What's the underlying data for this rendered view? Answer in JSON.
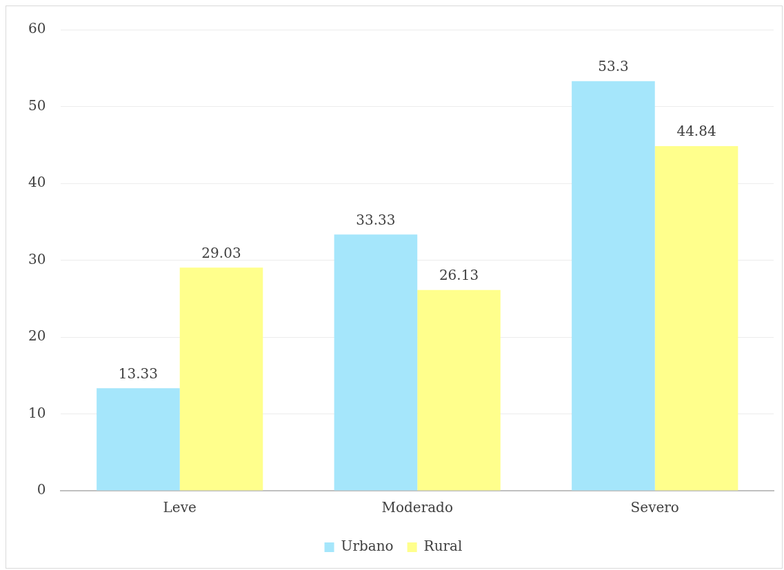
{
  "chart_data": {
    "type": "bar",
    "categories": [
      "Leve",
      "Moderado",
      "Severo"
    ],
    "series": [
      {
        "name": "Urbano",
        "color": "#a5e6fb",
        "values": [
          13.33,
          33.33,
          53.3
        ]
      },
      {
        "name": "Rural",
        "color": "#ffff8c",
        "values": [
          29.03,
          26.13,
          44.84
        ]
      }
    ],
    "ylim": [
      0,
      60
    ],
    "yticks": [
      0,
      10,
      20,
      30,
      40,
      50,
      60
    ],
    "grid": "y",
    "legend": "bottom",
    "data_labels": true
  }
}
